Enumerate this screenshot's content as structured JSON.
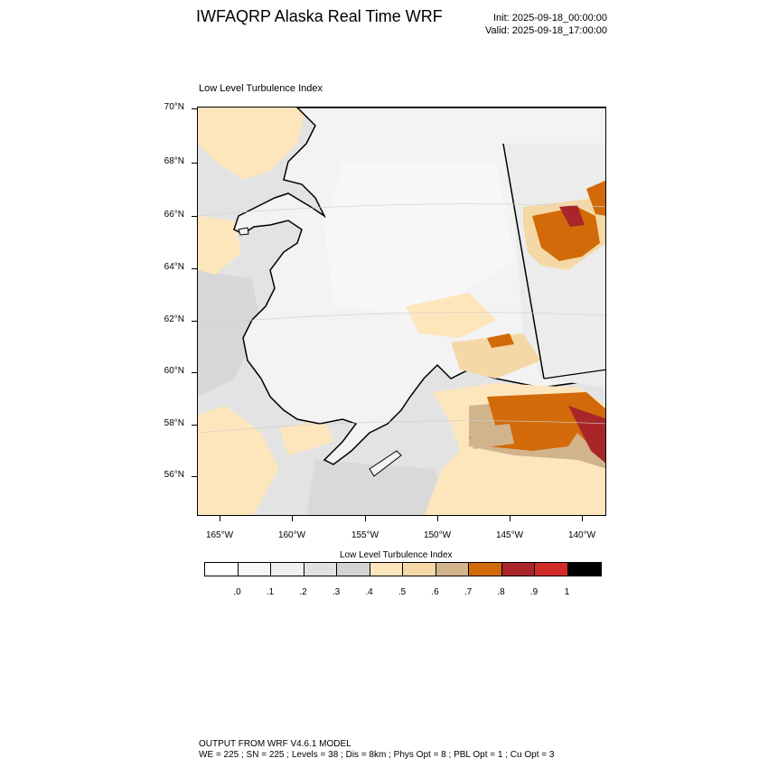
{
  "title": "IWFAQRP Alaska Real Time WRF",
  "init_text": "Init: 2025-09-18_00:00:00",
  "valid_text": "Valid: 2025-09-18_17:00:00",
  "panel_label": "Low Level Turbulence Index",
  "map": {
    "lat_labels": [
      "70°N",
      "68°N",
      "66°N",
      "64°N",
      "62°N",
      "60°N",
      "58°N",
      "56°N"
    ],
    "lon_labels": [
      "165°W",
      "160°W",
      "155°W",
      "150°W",
      "145°W",
      "140°W"
    ],
    "colors": {
      "ocean_base": "#e3e3e3",
      "land_base": "#f3f3f3",
      "coast": "#000000",
      "hot_high": "#d02020",
      "hot_mid": "#d26a0a",
      "tan": "#d2b48c",
      "peach": "#f4d9a6",
      "light_peach": "#fde6bb"
    }
  },
  "colorbar": {
    "title": "Low Level Turbulence Index",
    "colors": [
      "#ffffff",
      "#f7f7f7",
      "#efefef",
      "#e1e1e1",
      "#d3d3d3",
      "#fde6bb",
      "#f4d9a6",
      "#d2b48c",
      "#d26a0a",
      "#a8262a",
      "#d32a2a",
      "#000000"
    ],
    "labels": [
      ".0",
      ".1",
      ".2",
      ".3",
      ".4",
      ".5",
      ".6",
      ".7",
      ".8",
      ".9",
      "1"
    ]
  },
  "footer": {
    "line1": "OUTPUT FROM WRF V4.6.1 MODEL",
    "line2": "WE = 225 ; SN = 225 ; Levels = 38 ; Dis = 8km ; Phys Opt = 8 ; PBL Opt = 1 ; Cu Opt = 3"
  }
}
